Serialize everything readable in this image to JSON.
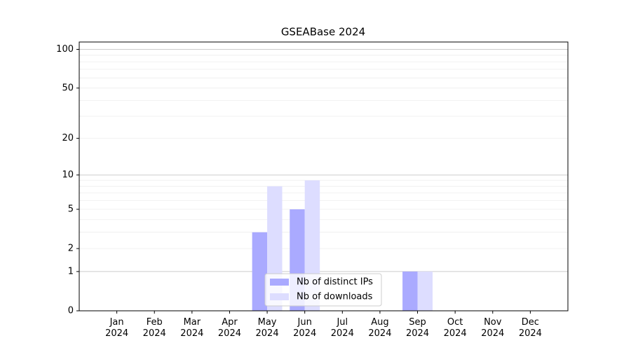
{
  "chart_data": {
    "type": "bar",
    "title": "GSEABase 2024",
    "categories": [
      "Jan 2024",
      "Feb 2024",
      "Mar 2024",
      "Apr 2024",
      "May 2024",
      "Jun 2024",
      "Jul 2024",
      "Aug 2024",
      "Sep 2024",
      "Oct 2024",
      "Nov 2024",
      "Dec 2024"
    ],
    "series": [
      {
        "name": "Nb of distinct IPs",
        "color": "#aaaaff",
        "values": [
          0,
          0,
          0,
          0,
          3,
          5,
          0,
          0,
          1,
          0,
          0,
          0
        ]
      },
      {
        "name": "Nb of downloads",
        "color": "#ddddff",
        "values": [
          0,
          0,
          0,
          0,
          8,
          9,
          0,
          0,
          1,
          0,
          0,
          0
        ]
      }
    ],
    "yscale": "log1p",
    "ylim": [
      0,
      114
    ],
    "yticks": [
      0,
      1,
      2,
      5,
      10,
      20,
      50,
      100
    ],
    "major_grid": [
      1,
      10,
      100
    ],
    "minor_grid": [
      2,
      3,
      4,
      5,
      6,
      7,
      8,
      9,
      20,
      30,
      40,
      50,
      60,
      70,
      80,
      90
    ],
    "legend": "lower center"
  }
}
